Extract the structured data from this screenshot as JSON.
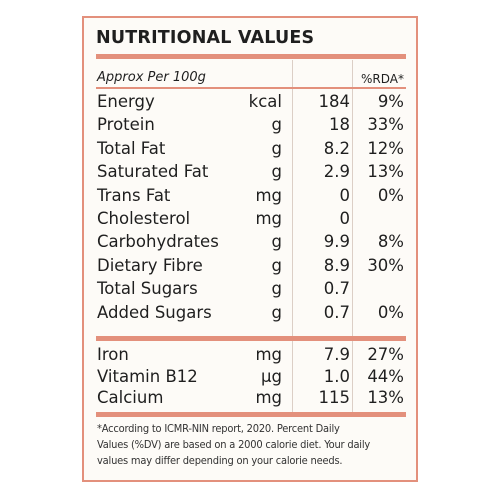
{
  "title": "NUTRITIONAL VALUES",
  "header": {
    "per": "Approx Per 100g",
    "rda": "%RDA*"
  },
  "rows": [
    {
      "name": "Energy",
      "unit": "kcal",
      "value": "184",
      "rda": "9%"
    },
    {
      "name": "Protein",
      "unit": "g",
      "value": "18",
      "rda": "33%"
    },
    {
      "name": "Total Fat",
      "unit": "g",
      "value": "8.2",
      "rda": "12%"
    },
    {
      "name": "Saturated Fat",
      "unit": "g",
      "value": "2.9",
      "rda": "13%"
    },
    {
      "name": "Trans Fat",
      "unit": "mg",
      "value": "0",
      "rda": "0%"
    },
    {
      "name": "Cholesterol",
      "unit": "mg",
      "value": "0",
      "rda": ""
    },
    {
      "name": "Carbohydrates",
      "unit": "g",
      "value": "9.9",
      "rda": "8%"
    },
    {
      "name": "Dietary Fibre",
      "unit": "g",
      "value": "8.9",
      "rda": "30%"
    },
    {
      "name": "Total Sugars",
      "unit": "g",
      "value": "0.7",
      "rda": ""
    },
    {
      "name": "Added Sugars",
      "unit": "g",
      "value": "0.7",
      "rda": "0%"
    }
  ],
  "minerals": [
    {
      "name": "Iron",
      "unit": "mg",
      "value": "7.9",
      "rda": "27%"
    },
    {
      "name": "Vitamin B12",
      "unit": "µg",
      "value": "1.0",
      "rda": "44%"
    },
    {
      "name": "Calcium",
      "unit": "mg",
      "value": "115",
      "rda": "13%"
    }
  ],
  "footnote": [
    "*According to ICMR-NIN report, 2020. Percent Daily",
    "Values (%DV) are based on a 2000 calorie diet. Your daily",
    "values may differ depending on your calorie needs."
  ]
}
